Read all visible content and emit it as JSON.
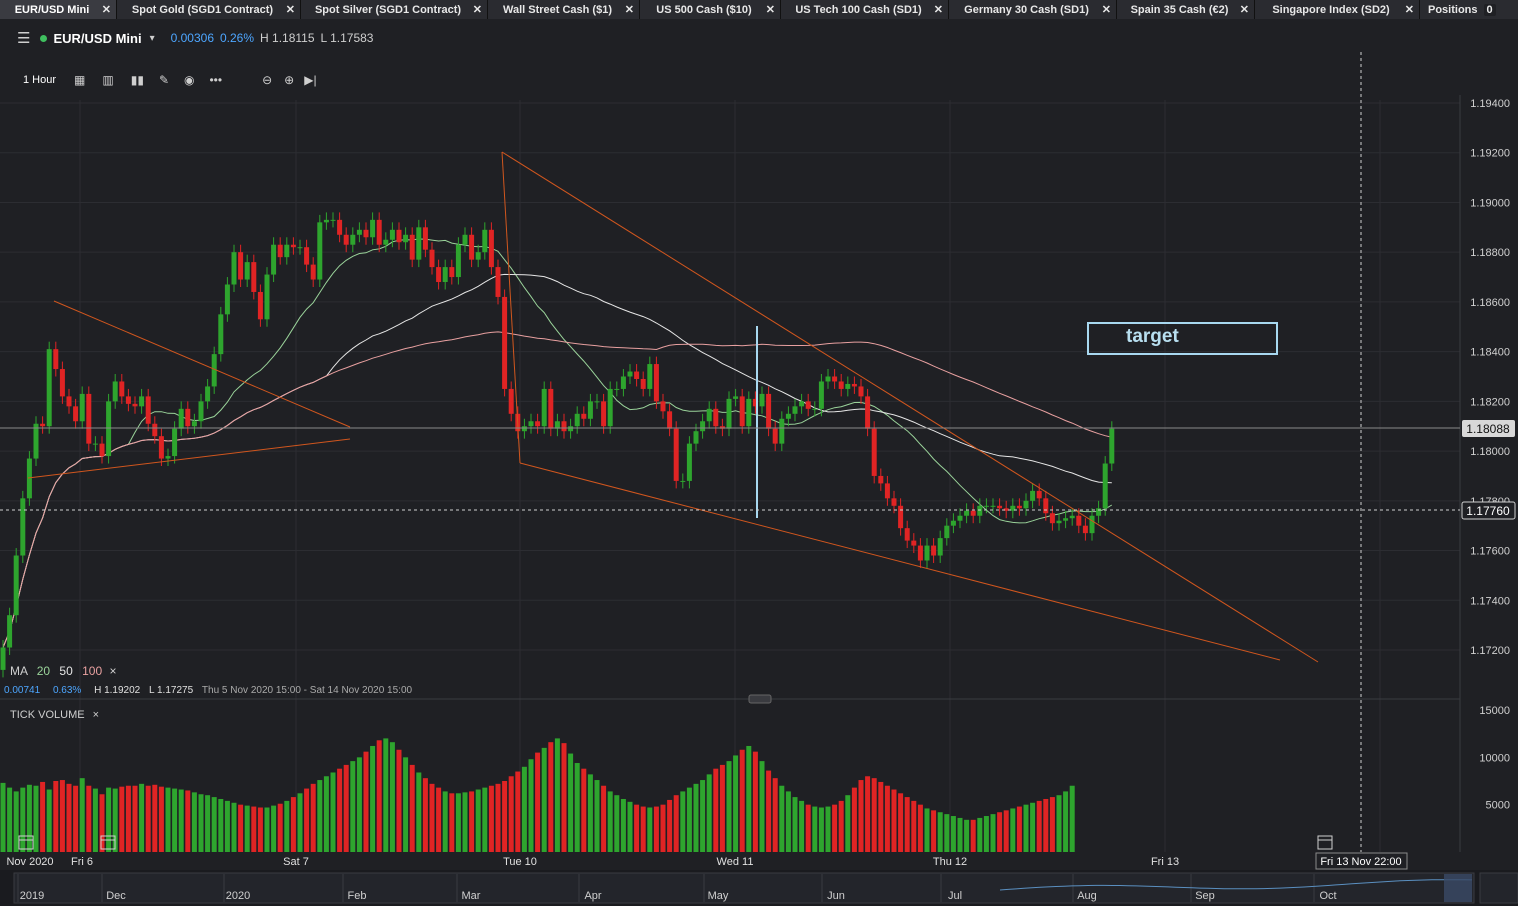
{
  "tabs": [
    {
      "label": "EUR/USD Mini",
      "active": true
    },
    {
      "label": "Spot Gold (SGD1 Contract)"
    },
    {
      "label": "Spot Silver (SGD1 Contract)"
    },
    {
      "label": "Wall Street Cash ($1)"
    },
    {
      "label": "US 500 Cash ($10)"
    },
    {
      "label": "US Tech 100 Cash (SD1)"
    },
    {
      "label": "Germany 30 Cash (SD1)"
    },
    {
      "label": "Spain 35 Cash (€2)"
    },
    {
      "label": "Singapore Index (SD2)"
    }
  ],
  "positions": {
    "label": "Positions",
    "count": "0"
  },
  "instrument": {
    "name": "EUR/USD Mini",
    "change": "0.00306",
    "change_pct": "0.26%",
    "high": "H 1.18115",
    "low": "L 1.17583",
    "dot_color": "#3fbf5f"
  },
  "toolbar": {
    "timeframe": "1 Hour"
  },
  "ma_legend": {
    "label": "MA",
    "periods": [
      "20",
      "50",
      "100"
    ],
    "colors": [
      "#9ad39a",
      "#e6e6e6",
      "#e8a0a0"
    ],
    "close": "×"
  },
  "range_info": {
    "change": "0.00741",
    "change_pct": "0.63%",
    "high": "H 1.19202",
    "low": "L 1.17275",
    "range": "Thu 5 Nov 2020 15:00 - Sat 14 Nov 2020 15:00"
  },
  "target_label": "target",
  "volume": {
    "title": "TICK VOLUME",
    "close": "×",
    "ticks": [
      "15000",
      "10000",
      "5000"
    ]
  },
  "price_labels": {
    "current": "1.18088",
    "crosshair": "1.17760"
  },
  "time_axis": {
    "labels": [
      "Nov 2020",
      "Fri 6",
      "Sat 7",
      "Tue 10",
      "Wed 11",
      "Thu 12",
      "Fri 13"
    ],
    "crosshair": "Fri 13 Nov 22:00"
  },
  "navigator": {
    "labels": [
      "2019",
      "Dec",
      "2020",
      "Feb",
      "Mar",
      "Apr",
      "May",
      "Jun",
      "Jul",
      "Aug",
      "Sep",
      "Oct"
    ]
  },
  "colors": {
    "up": "#2ea52e",
    "down": "#e02424",
    "trend": "#d0561e",
    "marker": "#a8d8f0",
    "target_border": "#a8d8f0"
  },
  "chart_data": {
    "type": "candlestick",
    "interval": "1 Hour",
    "y_axis": {
      "ticks": [
        1.194,
        1.192,
        1.19,
        1.188,
        1.186,
        1.184,
        1.182,
        1.18,
        1.178,
        1.176,
        1.174,
        1.172
      ],
      "range": [
        1.1706,
        1.1953
      ]
    },
    "closes": [
      1.1721,
      1.1734,
      1.1758,
      1.1781,
      1.1797,
      1.1811,
      1.181,
      1.1841,
      1.1833,
      1.1822,
      1.1818,
      1.1812,
      1.1823,
      1.1803,
      1.1803,
      1.1798,
      1.182,
      1.1828,
      1.1822,
      1.1819,
      1.1818,
      1.1822,
      1.1811,
      1.1806,
      1.1797,
      1.1798,
      1.1809,
      1.1817,
      1.181,
      1.1812,
      1.182,
      1.1826,
      1.1839,
      1.1855,
      1.1867,
      1.188,
      1.1869,
      1.1876,
      1.1864,
      1.1853,
      1.1871,
      1.1883,
      1.1878,
      1.1883,
      1.1882,
      1.1882,
      1.1875,
      1.1869,
      1.1892,
      1.1893,
      1.1893,
      1.1887,
      1.1883,
      1.1887,
      1.1889,
      1.1886,
      1.1893,
      1.1883,
      1.1885,
      1.1889,
      1.1884,
      1.1887,
      1.1877,
      1.189,
      1.1881,
      1.1874,
      1.1868,
      1.1874,
      1.187,
      1.1883,
      1.1887,
      1.1877,
      1.188,
      1.1889,
      1.1874,
      1.1862,
      1.1825,
      1.1815,
      1.1808,
      1.181,
      1.1812,
      1.181,
      1.1825,
      1.1809,
      1.1812,
      1.1808,
      1.181,
      1.1815,
      1.1813,
      1.182,
      1.182,
      1.181,
      1.1825,
      1.1825,
      1.183,
      1.1832,
      1.1829,
      1.1825,
      1.1835,
      1.182,
      1.1816,
      1.1809,
      1.1788,
      1.1788,
      1.1803,
      1.1808,
      1.1812,
      1.1817,
      1.181,
      1.1809,
      1.1821,
      1.1822,
      1.181,
      1.1821,
      1.1818,
      1.1823,
      1.1809,
      1.1803,
      1.1813,
      1.1815,
      1.1818,
      1.182,
      1.1817,
      1.1817,
      1.1828,
      1.183,
      1.1828,
      1.1825,
      1.1827,
      1.1826,
      1.1822,
      1.1809,
      1.179,
      1.1787,
      1.1781,
      1.1778,
      1.1769,
      1.1764,
      1.1762,
      1.1756,
      1.1762,
      1.1758,
      1.1765,
      1.177,
      1.1772,
      1.1774,
      1.1776,
      1.1774,
      1.1778,
      1.1778,
      1.1778,
      1.1777,
      1.1776,
      1.1778,
      1.1777,
      1.178,
      1.1784,
      1.1781,
      1.1775,
      1.1771,
      1.1772,
      1.1773,
      1.1774,
      1.177,
      1.1767,
      1.1774,
      1.1777,
      1.1795,
      1.1809
    ],
    "series": [
      {
        "name": "MA 20"
      },
      {
        "name": "MA 50"
      },
      {
        "name": "MA 100"
      }
    ],
    "volume": [
      7300,
      6800,
      6400,
      6800,
      7100,
      7000,
      7400,
      6600,
      7500,
      7600,
      7200,
      7000,
      7800,
      7000,
      6700,
      6100,
      6800,
      6700,
      6900,
      7000,
      7000,
      7200,
      7000,
      7100,
      6900,
      6800,
      6700,
      6600,
      6500,
      6300,
      6100,
      6000,
      5800,
      5600,
      5400,
      5200,
      5000,
      4900,
      4800,
      4700,
      4700,
      4900,
      5100,
      5400,
      5800,
      6200,
      6700,
      7200,
      7600,
      8000,
      8400,
      8800,
      9200,
      9600,
      10000,
      10600,
      11200,
      11800,
      12000,
      11600,
      10800,
      10000,
      9200,
      8400,
      7800,
      7200,
      6800,
      6400,
      6200,
      6200,
      6300,
      6400,
      6600,
      6800,
      7000,
      7200,
      7500,
      8000,
      8500,
      9000,
      9800,
      10500,
      11000,
      11600,
      12000,
      11500,
      10400,
      9400,
      8800,
      8200,
      7600,
      7000,
      6400,
      6000,
      5600,
      5300,
      5000,
      4800,
      4700,
      4800,
      5000,
      5500,
      6000,
      6400,
      6800,
      7200,
      7600,
      8200,
      8800,
      9200,
      9600,
      10200,
      10800,
      11200,
      10600,
      9600,
      8600,
      7800,
      7000,
      6400,
      5800,
      5400,
      5000,
      4800,
      4700,
      4800,
      5000,
      5400,
      6000,
      6800,
      7600,
      8000,
      7800,
      7400,
      7000,
      6600,
      6200,
      5800,
      5400,
      5000,
      4600,
      4400,
      4200,
      4000,
      3800,
      3600,
      3400,
      3400,
      3600,
      3800,
      4000,
      4200,
      4400,
      4600,
      4800,
      5000,
      5200,
      5400,
      5600,
      5800,
      6000,
      6400,
      7000
    ]
  }
}
